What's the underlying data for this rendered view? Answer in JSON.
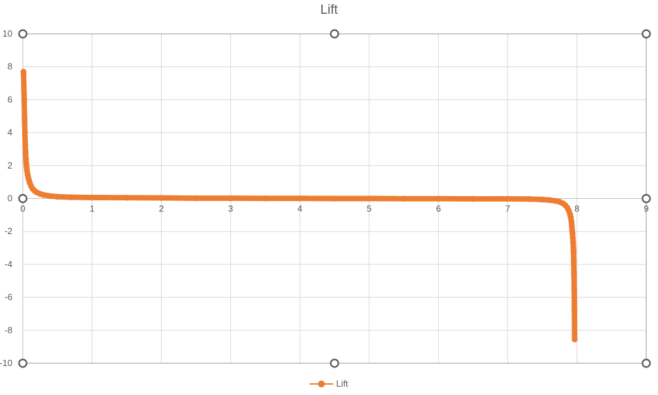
{
  "chart_data": {
    "type": "scatter",
    "title": "Lift",
    "xlabel": "",
    "ylabel": "",
    "xlim": [
      0,
      9
    ],
    "ylim": [
      -10,
      10
    ],
    "x_ticks": [
      "0",
      "1",
      "2",
      "3",
      "4",
      "5",
      "6",
      "7",
      "8",
      "9"
    ],
    "y_ticks": [
      "10",
      "8",
      "6",
      "4",
      "2",
      "0",
      "-2",
      "-4",
      "-6",
      "-8",
      "-10"
    ],
    "grid": true,
    "legend_position": "bottom",
    "series": [
      {
        "name": "Lift",
        "color": "#ed7d31",
        "marker": "circle",
        "line": "smooth",
        "points": [
          [
            0.01,
            7.7
          ],
          [
            0.02,
            6.0
          ],
          [
            0.025,
            4.8
          ],
          [
            0.03,
            4.0
          ],
          [
            0.035,
            3.3
          ],
          [
            0.04,
            2.8
          ],
          [
            0.045,
            2.4
          ],
          [
            0.05,
            2.1
          ],
          [
            0.055,
            1.9
          ],
          [
            0.06,
            1.7
          ],
          [
            0.07,
            1.45
          ],
          [
            0.08,
            1.25
          ],
          [
            0.09,
            1.1
          ],
          [
            0.1,
            0.95
          ],
          [
            0.12,
            0.75
          ],
          [
            0.14,
            0.6
          ],
          [
            0.17,
            0.47
          ],
          [
            0.2,
            0.38
          ],
          [
            0.25,
            0.28
          ],
          [
            0.3,
            0.22
          ],
          [
            0.4,
            0.15
          ],
          [
            0.5,
            0.11
          ],
          [
            0.7,
            0.08
          ],
          [
            1.0,
            0.06
          ],
          [
            1.5,
            0.05
          ],
          [
            2.0,
            0.04
          ],
          [
            2.5,
            0.02
          ],
          [
            3.0,
            0.02
          ],
          [
            3.5,
            0.01
          ],
          [
            4.0,
            0.01
          ],
          [
            4.5,
            0.0
          ],
          [
            5.0,
            0.0
          ],
          [
            5.5,
            -0.01
          ],
          [
            6.0,
            -0.01
          ],
          [
            6.5,
            -0.02
          ],
          [
            7.0,
            -0.02
          ],
          [
            7.3,
            -0.03
          ],
          [
            7.5,
            -0.06
          ],
          [
            7.6,
            -0.09
          ],
          [
            7.7,
            -0.15
          ],
          [
            7.75,
            -0.2
          ],
          [
            7.8,
            -0.3
          ],
          [
            7.83,
            -0.4
          ],
          [
            7.86,
            -0.55
          ],
          [
            7.88,
            -0.72
          ],
          [
            7.9,
            -0.95
          ],
          [
            7.91,
            -1.15
          ],
          [
            7.92,
            -1.4
          ],
          [
            7.925,
            -1.65
          ],
          [
            7.93,
            -1.9
          ],
          [
            7.935,
            -2.1
          ],
          [
            7.94,
            -2.4
          ],
          [
            7.945,
            -2.7
          ],
          [
            7.95,
            -3.2
          ],
          [
            7.953,
            -3.8
          ],
          [
            7.956,
            -4.5
          ],
          [
            7.96,
            -5.5
          ],
          [
            7.963,
            -6.8
          ],
          [
            7.966,
            -8.55
          ]
        ]
      }
    ]
  },
  "legend": {
    "label": "Lift"
  }
}
